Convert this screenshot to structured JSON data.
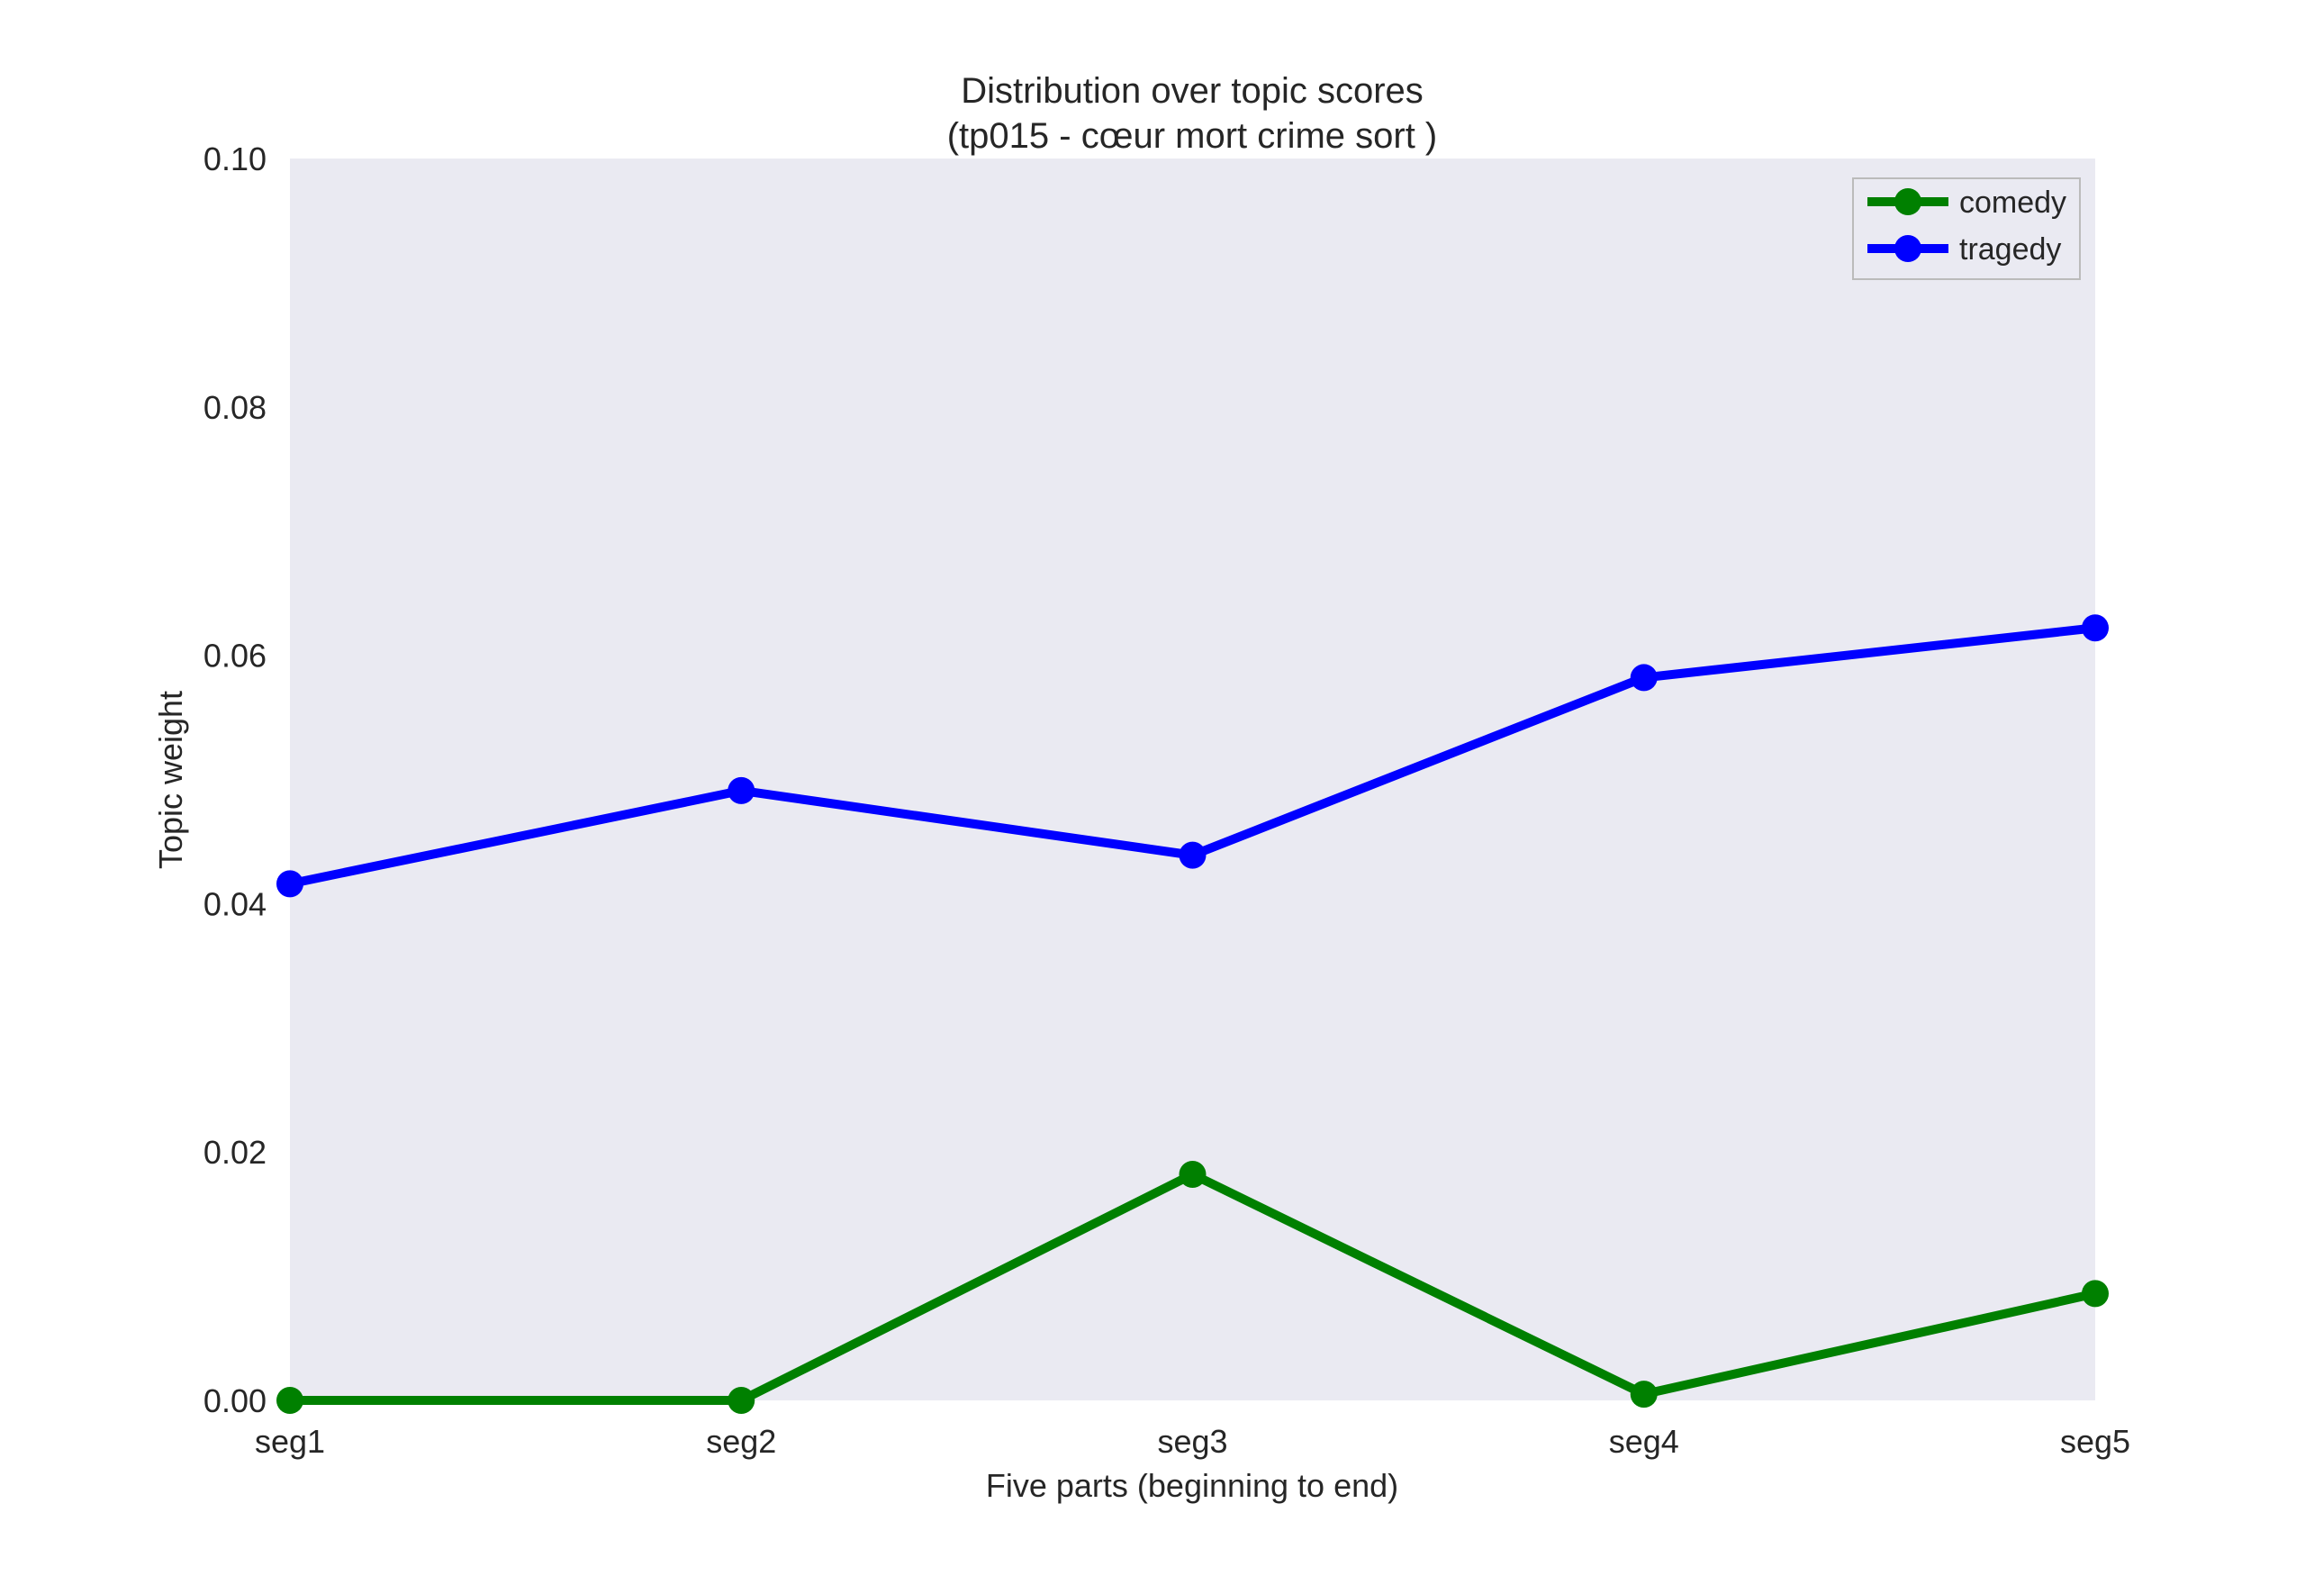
{
  "chart_data": {
    "type": "line",
    "title": "Distribution over topic scores",
    "subtitle": "(tp015 - cœur mort crime sort )",
    "xlabel": "Five parts (beginning to end)",
    "ylabel": "Topic weight",
    "categories": [
      "seg1",
      "seg2",
      "seg3",
      "seg4",
      "seg5"
    ],
    "ylim": [
      0,
      0.1
    ],
    "yticks": [
      "0.00",
      "0.02",
      "0.04",
      "0.06",
      "0.08",
      "0.10"
    ],
    "grid": false,
    "legend_position": "top-right",
    "background_color": "#EAEAF2",
    "series": [
      {
        "name": "comedy",
        "color": "#008000",
        "marker": "circle",
        "values": [
          0.0,
          0.0,
          0.0182,
          0.0005,
          0.0086
        ]
      },
      {
        "name": "tragedy",
        "color": "#0000FF",
        "marker": "circle",
        "values": [
          0.0416,
          0.0491,
          0.0439,
          0.0582,
          0.0622
        ]
      }
    ]
  }
}
